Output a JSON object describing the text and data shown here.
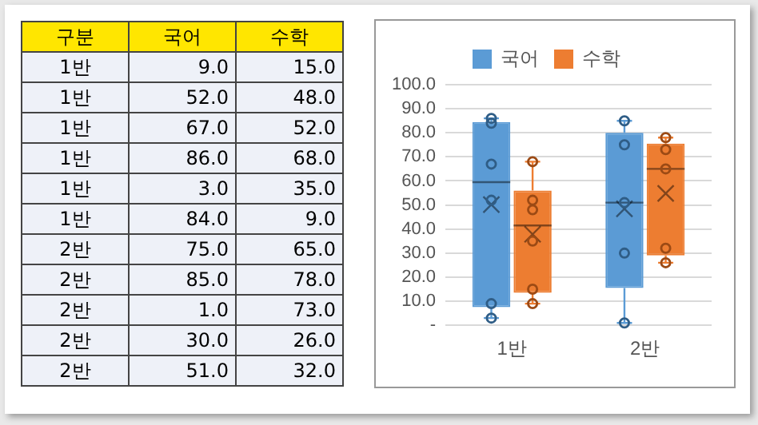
{
  "chart_data": [
    {
      "type": "heatmap",
      "ylabel": "구분",
      "categories": [
        "국어",
        "수학"
      ],
      "y_categories": [
        "1반",
        "1반",
        "1반",
        "1반",
        "1반",
        "1반",
        "2반",
        "2반",
        "2반",
        "2반",
        "2반"
      ],
      "cells": [
        [
          9,
          15
        ],
        [
          52,
          48
        ],
        [
          67,
          52
        ],
        [
          86,
          68
        ],
        [
          3,
          35
        ],
        [
          84,
          9
        ],
        [
          75,
          65
        ],
        [
          85,
          78
        ],
        [
          1,
          73
        ],
        [
          30,
          26
        ],
        [
          51,
          32
        ]
      ],
      "cell_labels": [
        [
          "9.0",
          "15.0"
        ],
        [
          "52.0",
          "48.0"
        ],
        [
          "67.0",
          "52.0"
        ],
        [
          "86.0",
          "68.0"
        ],
        [
          "3.0",
          "35.0"
        ],
        [
          "84.0",
          "9.0"
        ],
        [
          "75.0",
          "65.0"
        ],
        [
          "85.0",
          "78.0"
        ],
        [
          "1.0",
          "73.0"
        ],
        [
          "30.0",
          "26.0"
        ],
        [
          "51.0",
          "32.0"
        ]
      ]
    },
    {
      "type": "box",
      "categories": [
        "1반",
        "2반"
      ],
      "ylim": [
        0,
        100
      ],
      "yticks": [
        {
          "value": 0,
          "label": "-"
        },
        {
          "value": 10,
          "label": "10.0"
        },
        {
          "value": 20,
          "label": "20.0"
        },
        {
          "value": 30,
          "label": "30.0"
        },
        {
          "value": 40,
          "label": "40.0"
        },
        {
          "value": 50,
          "label": "50.0"
        },
        {
          "value": 60,
          "label": "60.0"
        },
        {
          "value": 70,
          "label": "70.0"
        },
        {
          "value": 80,
          "label": "80.0"
        },
        {
          "value": 90,
          "label": "90.0"
        },
        {
          "value": 100,
          "label": "100.0"
        }
      ],
      "grid": "y",
      "legend": "top",
      "marker": "circle",
      "series": [
        {
          "name": "국어",
          "color": "#5b9bd5",
          "boxes": [
            {
              "low": 3,
              "q1": 7.5,
              "median": 59.5,
              "q3": 84.5,
              "high": 86,
              "mean": 50.17
            },
            {
              "low": 1,
              "q1": 15.5,
              "median": 51,
              "q3": 80,
              "high": 85,
              "mean": 48.4
            }
          ]
        },
        {
          "name": "수학",
          "color": "#ed7d31",
          "boxes": [
            {
              "low": 9,
              "q1": 13.5,
              "median": 41.5,
              "q3": 56,
              "high": 68,
              "mean": 37.83
            },
            {
              "low": 26,
              "q1": 29,
              "median": 65,
              "q3": 75.5,
              "high": 78,
              "mean": 54.8
            }
          ]
        },
        {
          "type": "scatter",
          "color": "#2f5d86",
          "x": [
            "1반",
            "1반",
            "1반",
            "1반",
            "1반",
            "1반",
            "2반",
            "2반",
            "2반",
            "2반",
            "2반"
          ],
          "values": [
            9,
            52,
            67,
            86,
            3,
            84,
            75,
            85,
            1,
            30,
            51
          ]
        },
        {
          "type": "scatter",
          "color": "#9c4a14",
          "x": [
            "1반",
            "1반",
            "1반",
            "1반",
            "1반",
            "1반",
            "2반",
            "2반",
            "2반",
            "2반",
            "2반"
          ],
          "values": [
            15,
            48,
            52,
            68,
            35,
            9,
            65,
            78,
            73,
            26,
            32
          ]
        }
      ]
    }
  ]
}
